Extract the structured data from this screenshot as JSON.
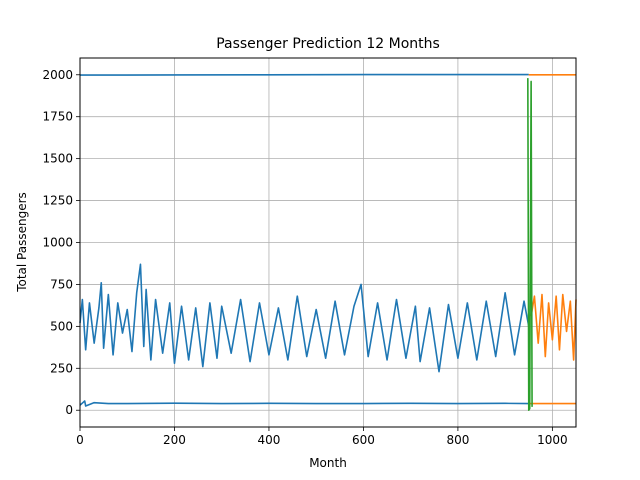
{
  "chart_data": {
    "type": "line",
    "title": "Passenger Prediction 12 Months",
    "xlabel": "Month",
    "ylabel": "Total Passengers",
    "xlim": [
      0,
      1050
    ],
    "ylim": [
      -100,
      2100
    ],
    "xticks": [
      0,
      200,
      400,
      600,
      800,
      1000
    ],
    "yticks": [
      0,
      250,
      500,
      750,
      1000,
      1250,
      1500,
      1750,
      2000
    ],
    "xtick_labels": [
      "0",
      "200",
      "400",
      "600",
      "800",
      "1000"
    ],
    "ytick_labels": [
      "0",
      "250",
      "500",
      "750",
      "1000",
      "1250",
      "1500",
      "1750",
      "2000"
    ],
    "grid": true,
    "legend": "none",
    "colors": {
      "history": "#1f77b4",
      "forecast": "#ff7f0e",
      "transition": "#2ca02c"
    },
    "series": [
      {
        "role": "history-top",
        "color": "#1f77b4",
        "x": [
          0,
          100,
          200,
          400,
          600,
          800,
          950
        ],
        "y": [
          1998,
          1998,
          1999,
          2000,
          2001,
          2001,
          2001
        ]
      },
      {
        "role": "history-passengers",
        "color": "#1f77b4",
        "x": [
          0,
          5,
          12,
          20,
          30,
          40,
          45,
          50,
          60,
          70,
          80,
          90,
          100,
          110,
          120,
          128,
          135,
          140,
          150,
          160,
          175,
          190,
          200,
          215,
          230,
          245,
          260,
          275,
          290,
          300,
          320,
          340,
          360,
          380,
          400,
          420,
          440,
          460,
          480,
          500,
          520,
          540,
          560,
          580,
          595,
          610,
          630,
          650,
          670,
          690,
          710,
          720,
          740,
          760,
          780,
          800,
          820,
          840,
          860,
          880,
          900,
          920,
          940,
          950
        ],
        "y": [
          520,
          660,
          360,
          640,
          400,
          610,
          760,
          370,
          690,
          330,
          640,
          460,
          600,
          350,
          700,
          870,
          380,
          720,
          300,
          660,
          340,
          640,
          280,
          620,
          300,
          610,
          260,
          640,
          310,
          620,
          340,
          660,
          290,
          640,
          330,
          610,
          300,
          680,
          320,
          600,
          310,
          650,
          330,
          620,
          750,
          320,
          640,
          300,
          660,
          310,
          620,
          290,
          610,
          230,
          630,
          310,
          640,
          300,
          650,
          320,
          700,
          330,
          650,
          500
        ]
      },
      {
        "role": "history-bottom",
        "color": "#1f77b4",
        "x": [
          0,
          10,
          12,
          30,
          60,
          100,
          200,
          300,
          400,
          500,
          600,
          700,
          800,
          900,
          950
        ],
        "y": [
          30,
          55,
          25,
          45,
          40,
          40,
          42,
          40,
          41,
          40,
          40,
          41,
          40,
          41,
          40
        ]
      },
      {
        "role": "forecast-top",
        "color": "#ff7f0e",
        "x": [
          950,
          1000,
          1050
        ],
        "y": [
          2000,
          2000,
          2000
        ]
      },
      {
        "role": "forecast-passengers",
        "color": "#ff7f0e",
        "x": [
          955,
          962,
          970,
          978,
          985,
          992,
          1000,
          1008,
          1015,
          1022,
          1030,
          1038,
          1045,
          1050
        ],
        "y": [
          560,
          680,
          400,
          690,
          320,
          640,
          420,
          680,
          360,
          690,
          470,
          650,
          300,
          660
        ]
      },
      {
        "role": "forecast-bottom",
        "color": "#ff7f0e",
        "x": [
          950,
          1000,
          1050
        ],
        "y": [
          40,
          40,
          40
        ]
      },
      {
        "role": "transition",
        "color": "#2ca02c",
        "x": [
          948,
          950,
          952,
          955,
          957
        ],
        "y": [
          1980,
          0,
          10,
          1960,
          20
        ]
      }
    ]
  }
}
